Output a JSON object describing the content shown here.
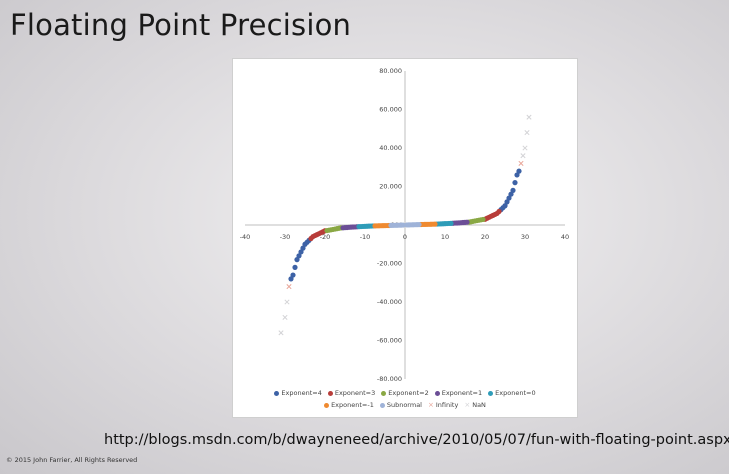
{
  "slide": {
    "title": "Floating Point Precision",
    "link": "http://blogs.msdn.com/b/dwayneneed/archive/2010/05/07/fun-with-floating-point.aspx",
    "copyright": "© 2015 John Farrier, All Rights Reserved"
  },
  "chart_data": {
    "type": "scatter",
    "xlim": [
      -40,
      40
    ],
    "ylim": [
      -80,
      80
    ],
    "x_ticks": [
      "-40",
      "-30",
      "-20",
      "-10",
      "0",
      "10",
      "20",
      "30",
      "40"
    ],
    "y_ticks": [
      "80.000",
      "60.000",
      "40.000",
      "20.000",
      "-20.000",
      "-40.000",
      "-60.000",
      "-80.000"
    ],
    "origin_label": "000",
    "grid": false,
    "legend_position": "bottom",
    "series": [
      {
        "name": "Exponent=4",
        "color": "#3d62a6",
        "marker": "dot",
        "points": [
          [
            24,
            8
          ],
          [
            24.5,
            9
          ],
          [
            25,
            10
          ],
          [
            25.5,
            12
          ],
          [
            26,
            14
          ],
          [
            26.5,
            16
          ],
          [
            27,
            18
          ],
          [
            27.5,
            22
          ],
          [
            28,
            26
          ],
          [
            28.5,
            28
          ],
          [
            -24,
            -8
          ],
          [
            -24.5,
            -9
          ],
          [
            -25,
            -10
          ],
          [
            -25.5,
            -12
          ],
          [
            -26,
            -14
          ],
          [
            -26.5,
            -16
          ],
          [
            -27,
            -18
          ],
          [
            -27.5,
            -22
          ],
          [
            -28,
            -26
          ],
          [
            -28.5,
            -28
          ]
        ]
      },
      {
        "name": "Exponent=3",
        "color": "#b83d3a",
        "marker": "dot",
        "points": [
          [
            20,
            3
          ],
          [
            20.5,
            3.5
          ],
          [
            21,
            4
          ],
          [
            21.5,
            4.5
          ],
          [
            22,
            5
          ],
          [
            22.5,
            5.5
          ],
          [
            23,
            6
          ],
          [
            23.5,
            7
          ],
          [
            -20,
            -3
          ],
          [
            -20.5,
            -3.5
          ],
          [
            -21,
            -4
          ],
          [
            -21.5,
            -4.5
          ],
          [
            -22,
            -5
          ],
          [
            -22.5,
            -5.5
          ],
          [
            -23,
            -6
          ],
          [
            -23.5,
            -7
          ]
        ]
      },
      {
        "name": "Exponent=2",
        "color": "#8aa844",
        "marker": "dot",
        "points": [
          [
            16,
            1.5
          ],
          [
            16.5,
            1.7
          ],
          [
            17,
            1.9
          ],
          [
            17.5,
            2.1
          ],
          [
            18,
            2.3
          ],
          [
            18.5,
            2.5
          ],
          [
            19,
            2.7
          ],
          [
            19.5,
            2.9
          ],
          [
            -16,
            -1.5
          ],
          [
            -16.5,
            -1.7
          ],
          [
            -17,
            -1.9
          ],
          [
            -17.5,
            -2.1
          ],
          [
            -18,
            -2.3
          ],
          [
            -18.5,
            -2.5
          ],
          [
            -19,
            -2.7
          ],
          [
            -19.5,
            -2.9
          ]
        ]
      },
      {
        "name": "Exponent=1",
        "color": "#6b4e96",
        "marker": "dot",
        "points": [
          [
            12,
            0.9
          ],
          [
            12.5,
            1.0
          ],
          [
            13,
            1.05
          ],
          [
            13.5,
            1.1
          ],
          [
            14,
            1.2
          ],
          [
            14.5,
            1.3
          ],
          [
            15,
            1.35
          ],
          [
            15.5,
            1.45
          ],
          [
            -12,
            -0.9
          ],
          [
            -12.5,
            -1.0
          ],
          [
            -13,
            -1.05
          ],
          [
            -13.5,
            -1.1
          ],
          [
            -14,
            -1.2
          ],
          [
            -14.5,
            -1.3
          ],
          [
            -15,
            -1.35
          ],
          [
            -15.5,
            -1.45
          ]
        ]
      },
      {
        "name": "Exponent=0",
        "color": "#2e9cb8",
        "marker": "dot",
        "points": [
          [
            8,
            0.5
          ],
          [
            8.5,
            0.55
          ],
          [
            9,
            0.6
          ],
          [
            9.5,
            0.65
          ],
          [
            10,
            0.7
          ],
          [
            10.5,
            0.75
          ],
          [
            11,
            0.8
          ],
          [
            11.5,
            0.85
          ],
          [
            -8,
            -0.5
          ],
          [
            -8.5,
            -0.55
          ],
          [
            -9,
            -0.6
          ],
          [
            -9.5,
            -0.65
          ],
          [
            -10,
            -0.7
          ],
          [
            -10.5,
            -0.75
          ],
          [
            -11,
            -0.8
          ],
          [
            -11.5,
            -0.85
          ]
        ]
      },
      {
        "name": "Exponent=-1",
        "color": "#ef8a30",
        "marker": "dot",
        "points": [
          [
            4,
            0.25
          ],
          [
            4.5,
            0.28
          ],
          [
            5,
            0.31
          ],
          [
            5.5,
            0.34
          ],
          [
            6,
            0.37
          ],
          [
            6.5,
            0.4
          ],
          [
            7,
            0.43
          ],
          [
            7.5,
            0.46
          ],
          [
            -4,
            -0.25
          ],
          [
            -4.5,
            -0.28
          ],
          [
            -5,
            -0.31
          ],
          [
            -5.5,
            -0.34
          ],
          [
            -6,
            -0.37
          ],
          [
            -6.5,
            -0.4
          ],
          [
            -7,
            -0.43
          ],
          [
            -7.5,
            -0.46
          ]
        ]
      },
      {
        "name": "Subnormal",
        "color": "#9fb3d8",
        "marker": "dot",
        "points": [
          [
            0.5,
            0.03
          ],
          [
            1,
            0.06
          ],
          [
            1.5,
            0.09
          ],
          [
            2,
            0.12
          ],
          [
            2.5,
            0.15
          ],
          [
            3,
            0.18
          ],
          [
            3.5,
            0.21
          ],
          [
            -0.5,
            -0.03
          ],
          [
            -1,
            -0.06
          ],
          [
            -1.5,
            -0.09
          ],
          [
            -2,
            -0.12
          ],
          [
            -2.5,
            -0.15
          ],
          [
            -3,
            -0.18
          ],
          [
            -3.5,
            -0.21
          ]
        ]
      },
      {
        "name": "Infinity",
        "color": "#e8a598",
        "marker": "x",
        "points": [
          [
            29,
            32
          ],
          [
            -29,
            -32
          ]
        ]
      },
      {
        "name": "NaN",
        "color": "#d3d3d6",
        "marker": "x",
        "points": [
          [
            29.5,
            36
          ],
          [
            30,
            40
          ],
          [
            30.5,
            48
          ],
          [
            31,
            56
          ],
          [
            -29.5,
            -40
          ],
          [
            -30,
            -48
          ],
          [
            -31,
            -56
          ]
        ]
      }
    ]
  }
}
